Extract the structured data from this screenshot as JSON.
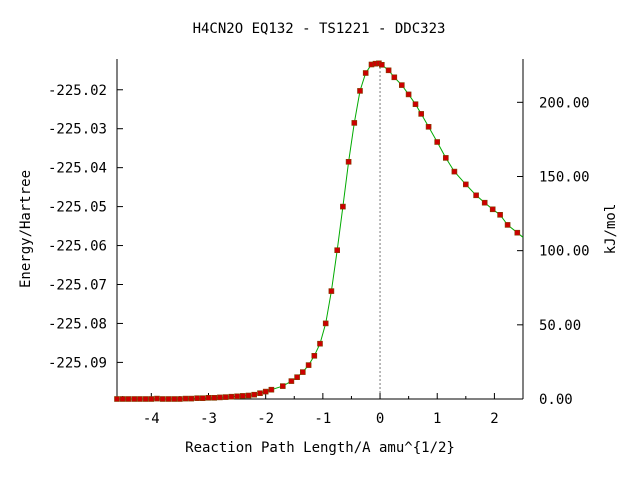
{
  "chart_data": {
    "type": "scatter",
    "title": "H4CN2O   EQ132 - TS1221 - DDC323",
    "xlabel": "Reaction Path Length/A amu^{1/2}",
    "ylabel": "Energy/Hartree",
    "y2label": "kJ/mol",
    "xlim": [
      -4.6,
      2.5
    ],
    "ylim": [
      -225.0994,
      -225.0121
    ],
    "y2lim": [
      0.0,
      229.2
    ],
    "xticks": [
      "-4",
      "-3",
      "-2",
      "-1",
      "0",
      "1",
      "2"
    ],
    "yticks": [
      "-225.02",
      "-225.03",
      "-225.04",
      "-225.05",
      "-225.06",
      "-225.07",
      "-225.08",
      "-225.09"
    ],
    "y2ticks": [
      "0.00",
      "50.00",
      "100.00",
      "150.00",
      "200.00"
    ],
    "transition_state_x": 0.0,
    "series": [
      {
        "x": [
          -4.6,
          -4.5,
          -4.4,
          -4.3,
          -4.2,
          -4.1,
          -4.0,
          -3.9,
          -3.8,
          -3.7,
          -3.6,
          -3.5,
          -3.4,
          -3.3,
          -3.2,
          -3.1,
          -3.0,
          -2.9,
          -2.8,
          -2.7,
          -2.6,
          -2.5,
          -2.4,
          -2.3,
          -2.2,
          -2.1,
          -2.0,
          -1.9,
          -1.7,
          -1.55,
          -1.45,
          -1.35,
          -1.25,
          -1.15,
          -1.05,
          -0.95,
          -0.85,
          -0.75,
          -0.65,
          -0.55,
          -0.45,
          -0.35,
          -0.25,
          -0.15,
          -0.08,
          -0.02,
          0.03,
          0.15,
          0.25,
          0.38,
          0.5,
          0.62,
          0.72,
          0.85,
          1.0,
          1.15,
          1.3,
          1.5,
          1.68,
          1.83,
          1.97,
          2.1,
          2.23,
          2.4
        ],
        "y": [
          -225.0994,
          -225.0994,
          -225.0994,
          -225.0994,
          -225.0994,
          -225.0994,
          -225.0994,
          -225.0993,
          -225.0994,
          -225.0994,
          -225.0994,
          -225.0994,
          -225.0993,
          -225.0993,
          -225.0992,
          -225.0992,
          -225.0991,
          -225.0991,
          -225.099,
          -225.0989,
          -225.0988,
          -225.0987,
          -225.0986,
          -225.0985,
          -225.0983,
          -225.0979,
          -225.0975,
          -225.097,
          -225.0961,
          -225.0948,
          -225.0938,
          -225.0925,
          -225.0907,
          -225.0883,
          -225.0852,
          -225.08,
          -225.0717,
          -225.0612,
          -225.05,
          -225.0385,
          -225.0285,
          -225.0203,
          -225.0157,
          -225.0135,
          -225.0133,
          -225.0132,
          -225.0136,
          -225.015,
          -225.0168,
          -225.0188,
          -225.0212,
          -225.0237,
          -225.0262,
          -225.0295,
          -225.0334,
          -225.0375,
          -225.041,
          -225.0443,
          -225.0471,
          -225.049,
          -225.0507,
          -225.0521,
          -225.0547,
          -225.0567
        ]
      }
    ]
  }
}
